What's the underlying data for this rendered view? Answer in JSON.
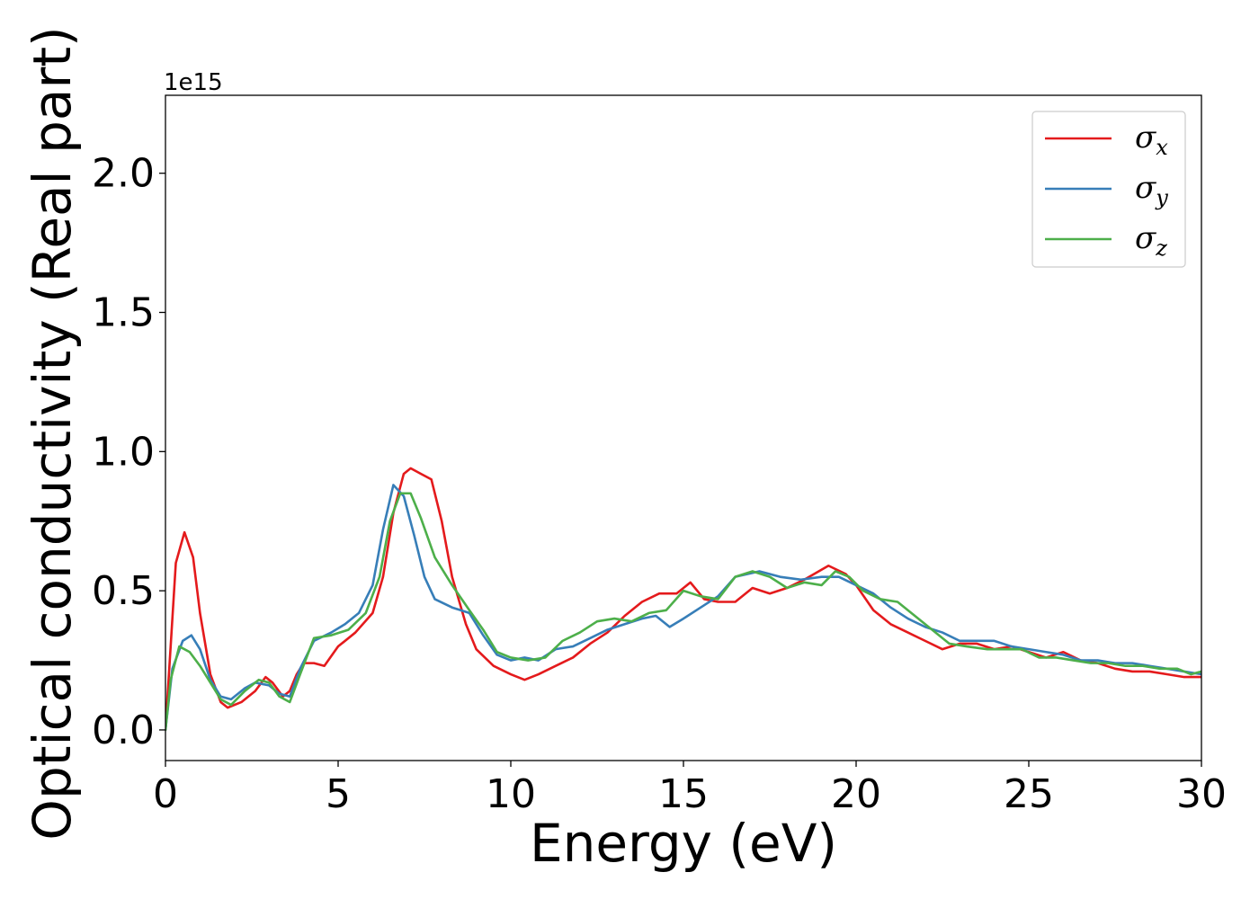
{
  "chart_data": {
    "type": "line",
    "xlabel": "Energy (eV)",
    "ylabel": "Optical conductivity (Real part)",
    "y_offset_text": "1e15",
    "xlim": [
      0,
      30
    ],
    "ylim": [
      -0.11,
      2.28
    ],
    "x_ticks": [
      0,
      5,
      10,
      15,
      20,
      25,
      30
    ],
    "x_tick_labels": [
      "0",
      "5",
      "10",
      "15",
      "20",
      "25",
      "30"
    ],
    "y_ticks": [
      0.0,
      0.5,
      1.0,
      1.5,
      2.0
    ],
    "y_tick_labels": [
      "0.0",
      "0.5",
      "1.0",
      "1.5",
      "2.0"
    ],
    "grid": false,
    "legend_position": "top-right",
    "series": [
      {
        "name": "σ",
        "subscript": "x",
        "color": "#e41a1c",
        "points": [
          [
            0,
            0.0
          ],
          [
            0.15,
            0.3
          ],
          [
            0.3,
            0.6
          ],
          [
            0.55,
            0.71
          ],
          [
            0.8,
            0.62
          ],
          [
            1.0,
            0.42
          ],
          [
            1.3,
            0.2
          ],
          [
            1.6,
            0.1
          ],
          [
            1.8,
            0.08
          ],
          [
            2.2,
            0.1
          ],
          [
            2.6,
            0.14
          ],
          [
            2.9,
            0.19
          ],
          [
            3.1,
            0.17
          ],
          [
            3.4,
            0.12
          ],
          [
            3.6,
            0.14
          ],
          [
            3.8,
            0.2
          ],
          [
            4.0,
            0.24
          ],
          [
            4.3,
            0.24
          ],
          [
            4.6,
            0.23
          ],
          [
            5.0,
            0.3
          ],
          [
            5.5,
            0.35
          ],
          [
            6.0,
            0.42
          ],
          [
            6.3,
            0.55
          ],
          [
            6.6,
            0.78
          ],
          [
            6.9,
            0.92
          ],
          [
            7.1,
            0.94
          ],
          [
            7.4,
            0.92
          ],
          [
            7.7,
            0.9
          ],
          [
            8.0,
            0.75
          ],
          [
            8.3,
            0.55
          ],
          [
            8.7,
            0.38
          ],
          [
            9.0,
            0.29
          ],
          [
            9.5,
            0.23
          ],
          [
            10.0,
            0.2
          ],
          [
            10.4,
            0.18
          ],
          [
            10.8,
            0.2
          ],
          [
            11.3,
            0.23
          ],
          [
            11.8,
            0.26
          ],
          [
            12.3,
            0.31
          ],
          [
            12.8,
            0.35
          ],
          [
            13.3,
            0.41
          ],
          [
            13.8,
            0.46
          ],
          [
            14.3,
            0.49
          ],
          [
            14.8,
            0.49
          ],
          [
            15.2,
            0.53
          ],
          [
            15.6,
            0.47
          ],
          [
            16.0,
            0.46
          ],
          [
            16.5,
            0.46
          ],
          [
            17.0,
            0.51
          ],
          [
            17.5,
            0.49
          ],
          [
            18.0,
            0.51
          ],
          [
            18.5,
            0.54
          ],
          [
            19.2,
            0.59
          ],
          [
            19.7,
            0.56
          ],
          [
            20.0,
            0.52
          ],
          [
            20.5,
            0.43
          ],
          [
            21.0,
            0.38
          ],
          [
            21.5,
            0.35
          ],
          [
            22.0,
            0.32
          ],
          [
            22.5,
            0.29
          ],
          [
            23.0,
            0.31
          ],
          [
            23.5,
            0.31
          ],
          [
            24.0,
            0.29
          ],
          [
            24.5,
            0.3
          ],
          [
            25.0,
            0.28
          ],
          [
            25.5,
            0.26
          ],
          [
            26.0,
            0.28
          ],
          [
            26.5,
            0.25
          ],
          [
            27.0,
            0.24
          ],
          [
            27.5,
            0.22
          ],
          [
            28.0,
            0.21
          ],
          [
            28.5,
            0.21
          ],
          [
            29.0,
            0.2
          ],
          [
            29.5,
            0.19
          ],
          [
            30.0,
            0.19
          ]
        ]
      },
      {
        "name": "σ",
        "subscript": "y",
        "color": "#377eb8",
        "points": [
          [
            0,
            0.0
          ],
          [
            0.2,
            0.22
          ],
          [
            0.5,
            0.32
          ],
          [
            0.75,
            0.34
          ],
          [
            1.0,
            0.29
          ],
          [
            1.3,
            0.18
          ],
          [
            1.6,
            0.12
          ],
          [
            1.9,
            0.11
          ],
          [
            2.3,
            0.15
          ],
          [
            2.6,
            0.17
          ],
          [
            3.0,
            0.16
          ],
          [
            3.3,
            0.13
          ],
          [
            3.6,
            0.12
          ],
          [
            3.9,
            0.22
          ],
          [
            4.3,
            0.32
          ],
          [
            4.8,
            0.35
          ],
          [
            5.2,
            0.38
          ],
          [
            5.6,
            0.42
          ],
          [
            6.0,
            0.52
          ],
          [
            6.3,
            0.72
          ],
          [
            6.6,
            0.88
          ],
          [
            6.9,
            0.84
          ],
          [
            7.2,
            0.7
          ],
          [
            7.5,
            0.55
          ],
          [
            7.8,
            0.47
          ],
          [
            8.3,
            0.44
          ],
          [
            8.8,
            0.42
          ],
          [
            9.2,
            0.34
          ],
          [
            9.6,
            0.27
          ],
          [
            10.0,
            0.25
          ],
          [
            10.4,
            0.26
          ],
          [
            10.8,
            0.25
          ],
          [
            11.3,
            0.29
          ],
          [
            11.8,
            0.3
          ],
          [
            12.3,
            0.33
          ],
          [
            12.8,
            0.36
          ],
          [
            13.3,
            0.38
          ],
          [
            13.8,
            0.4
          ],
          [
            14.2,
            0.41
          ],
          [
            14.6,
            0.37
          ],
          [
            15.0,
            0.4
          ],
          [
            15.5,
            0.44
          ],
          [
            16.0,
            0.48
          ],
          [
            16.5,
            0.55
          ],
          [
            17.2,
            0.57
          ],
          [
            17.8,
            0.55
          ],
          [
            18.4,
            0.54
          ],
          [
            19.0,
            0.55
          ],
          [
            19.5,
            0.55
          ],
          [
            20.0,
            0.52
          ],
          [
            20.5,
            0.49
          ],
          [
            21.0,
            0.44
          ],
          [
            21.5,
            0.4
          ],
          [
            22.0,
            0.37
          ],
          [
            22.5,
            0.35
          ],
          [
            23.0,
            0.32
          ],
          [
            23.5,
            0.32
          ],
          [
            24.0,
            0.32
          ],
          [
            24.5,
            0.3
          ],
          [
            25.0,
            0.29
          ],
          [
            25.5,
            0.28
          ],
          [
            26.0,
            0.27
          ],
          [
            26.5,
            0.25
          ],
          [
            27.0,
            0.25
          ],
          [
            27.5,
            0.24
          ],
          [
            28.0,
            0.24
          ],
          [
            28.5,
            0.23
          ],
          [
            29.0,
            0.22
          ],
          [
            29.5,
            0.21
          ],
          [
            30.0,
            0.2
          ]
        ]
      },
      {
        "name": "σ",
        "subscript": "z",
        "color": "#4daf4a",
        "points": [
          [
            0,
            0.0
          ],
          [
            0.15,
            0.18
          ],
          [
            0.4,
            0.3
          ],
          [
            0.7,
            0.28
          ],
          [
            1.0,
            0.23
          ],
          [
            1.3,
            0.17
          ],
          [
            1.6,
            0.11
          ],
          [
            1.9,
            0.09
          ],
          [
            2.3,
            0.14
          ],
          [
            2.7,
            0.18
          ],
          [
            3.0,
            0.17
          ],
          [
            3.3,
            0.12
          ],
          [
            3.6,
            0.1
          ],
          [
            3.9,
            0.2
          ],
          [
            4.3,
            0.33
          ],
          [
            4.8,
            0.34
          ],
          [
            5.3,
            0.36
          ],
          [
            5.8,
            0.42
          ],
          [
            6.2,
            0.55
          ],
          [
            6.5,
            0.75
          ],
          [
            6.8,
            0.85
          ],
          [
            7.1,
            0.85
          ],
          [
            7.4,
            0.76
          ],
          [
            7.8,
            0.62
          ],
          [
            8.3,
            0.52
          ],
          [
            8.8,
            0.43
          ],
          [
            9.2,
            0.36
          ],
          [
            9.6,
            0.28
          ],
          [
            10.0,
            0.26
          ],
          [
            10.5,
            0.25
          ],
          [
            11.0,
            0.26
          ],
          [
            11.5,
            0.32
          ],
          [
            12.0,
            0.35
          ],
          [
            12.5,
            0.39
          ],
          [
            13.0,
            0.4
          ],
          [
            13.5,
            0.39
          ],
          [
            14.0,
            0.42
          ],
          [
            14.5,
            0.43
          ],
          [
            15.0,
            0.5
          ],
          [
            15.5,
            0.48
          ],
          [
            16.0,
            0.47
          ],
          [
            16.5,
            0.55
          ],
          [
            17.0,
            0.57
          ],
          [
            17.5,
            0.55
          ],
          [
            18.0,
            0.51
          ],
          [
            18.5,
            0.53
          ],
          [
            19.0,
            0.52
          ],
          [
            19.4,
            0.57
          ],
          [
            19.8,
            0.55
          ],
          [
            20.2,
            0.5
          ],
          [
            20.7,
            0.47
          ],
          [
            21.2,
            0.46
          ],
          [
            21.7,
            0.41
          ],
          [
            22.2,
            0.36
          ],
          [
            22.7,
            0.31
          ],
          [
            23.2,
            0.3
          ],
          [
            23.8,
            0.29
          ],
          [
            24.3,
            0.29
          ],
          [
            24.8,
            0.29
          ],
          [
            25.3,
            0.26
          ],
          [
            25.8,
            0.26
          ],
          [
            26.3,
            0.25
          ],
          [
            26.8,
            0.24
          ],
          [
            27.3,
            0.24
          ],
          [
            27.8,
            0.23
          ],
          [
            28.3,
            0.23
          ],
          [
            28.8,
            0.22
          ],
          [
            29.3,
            0.22
          ],
          [
            29.7,
            0.2
          ],
          [
            30.0,
            0.21
          ]
        ]
      }
    ]
  }
}
